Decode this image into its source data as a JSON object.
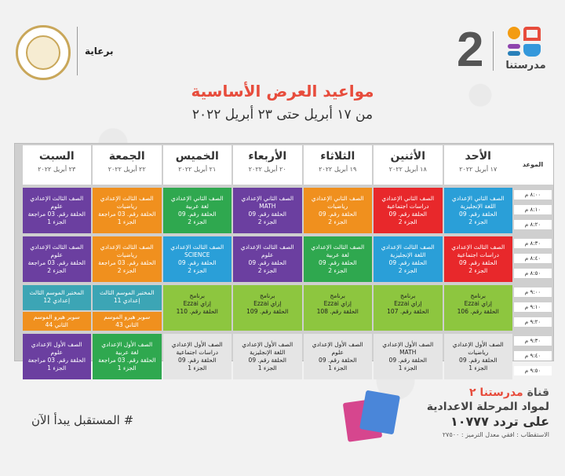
{
  "header": {
    "sponsor_label": "برعاية",
    "channel_number": "2",
    "channel_name": "مدرستنا"
  },
  "title": "مواعيد العرض الأساسية",
  "subtitle": "من ١٧ أبريل حتى ٢٣ أبريل ٢٠٢٢",
  "schedule": {
    "time_header": "الموعد",
    "times": [
      "٨:٠٠ م",
      "٨:١٠ م",
      "٨:٢٠ م",
      "٨:٣٠ م",
      "٨:٤٠ م",
      "٨:٥٠ م",
      "٩:٠٠ م",
      "٩:١٠ م",
      "٩:٢٠ م",
      "٩:٣٠ م",
      "٩:٤٠ م",
      "٩:٥٠ م"
    ],
    "days": [
      {
        "day": "الأحد",
        "date": "١٧ أبريل ٢٠٢٢"
      },
      {
        "day": "الأثنين",
        "date": "١٨ أبريل ٢٠٢٢"
      },
      {
        "day": "الثلاثاء",
        "date": "١٩ أبريل ٢٠٢٢"
      },
      {
        "day": "الأربعاء",
        "date": "٢٠ أبريل ٢٠٢٢"
      },
      {
        "day": "الخميس",
        "date": "٢١ أبريل ٢٠٢٢"
      },
      {
        "day": "الجمعة",
        "date": "٢٢ أبريل ٢٠٢٢"
      },
      {
        "day": "السبت",
        "date": "٢٣ أبريل ٢٠٢٢"
      }
    ],
    "rows": [
      [
        {
          "color": "blue",
          "lines": [
            "الصف الثاني الإعدادي",
            "اللغة الإنجليزية",
            "الحلقة رقم. 09",
            "الجزء 2"
          ]
        },
        {
          "color": "red",
          "lines": [
            "الصف الثاني الإعدادي",
            "دراسات اجتماعية",
            "الحلقة رقم. 09",
            "الجزء 2"
          ]
        },
        {
          "color": "orange",
          "lines": [
            "الصف الثاني الإعدادي",
            "رياضيات",
            "الحلقة رقم. 09",
            "الجزء 2"
          ]
        },
        {
          "color": "purple",
          "lines": [
            "الصف الثاني الإعدادي",
            "MATH",
            "الحلقة رقم. 09",
            "الجزء 2"
          ]
        },
        {
          "color": "green",
          "lines": [
            "الصف الثاني الإعدادي",
            "لغة عربية",
            "الحلقة رقم. 09",
            "الجزء 2"
          ]
        },
        {
          "color": "orange",
          "lines": [
            "الصف الثالث الإعدادي",
            "رياضيات",
            "الحلقة رقم. 03 مراجعة",
            "الجزء 1"
          ]
        },
        {
          "color": "purple",
          "lines": [
            "الصف الثالث الإعدادي",
            "علوم",
            "الحلقة رقم. 03 مراجعة",
            "الجزء 1"
          ]
        }
      ],
      [
        {
          "color": "red",
          "lines": [
            "الصف الثالث الإعدادي",
            "دراسات اجتماعية",
            "الحلقة رقم. 09",
            "الجزء 2"
          ]
        },
        {
          "color": "blue",
          "lines": [
            "الصف الثالث الإعدادي",
            "اللغة الإنجليزية",
            "الحلقة رقم. 09",
            "الجزء 2"
          ]
        },
        {
          "color": "green",
          "lines": [
            "الصف الثالث الإعدادي",
            "لغة عربية",
            "الحلقة رقم. 09",
            "الجزء 2"
          ]
        },
        {
          "color": "purple",
          "lines": [
            "الصف الثالث الإعدادي",
            "علوم",
            "الحلقة رقم. 09",
            "الجزء 2"
          ]
        },
        {
          "color": "blue",
          "lines": [
            "الصف الثالث الإعدادي",
            "SCIENCE",
            "الحلقة رقم. 09",
            "الجزء 2"
          ]
        },
        {
          "color": "orange",
          "lines": [
            "الصف الثالث الإعدادي",
            "رياضيات",
            "الحلقة رقم. 03 مراجعة",
            "الجزء 2"
          ]
        },
        {
          "color": "purple",
          "lines": [
            "الصف الثالث الإعدادي",
            "علوم",
            "الحلقة رقم. 03 مراجعة",
            "الجزء 2"
          ]
        }
      ],
      [
        {
          "color": "lime",
          "lines": [
            "برنامج",
            "إزاي Ezzai",
            "الحلقة رقم. 106"
          ]
        },
        {
          "color": "lime",
          "lines": [
            "برنامج",
            "إزاي Ezzai",
            "الحلقة رقم. 107"
          ]
        },
        {
          "color": "lime",
          "lines": [
            "برنامج",
            "إزاي Ezzai",
            "الحلقة رقم. 108"
          ]
        },
        {
          "color": "lime",
          "lines": [
            "برنامج",
            "إزاي Ezzai",
            "الحلقة رقم. 109"
          ]
        },
        {
          "color": "lime",
          "lines": [
            "برنامج",
            "إزاي Ezzai",
            "الحلقة رقم. 110"
          ]
        },
        null,
        null
      ],
      [
        {
          "color": "gray",
          "lines": [
            "الصف الأول الإعدادي",
            "رياضيات",
            "الحلقة رقم. 09",
            "الجزء 1"
          ]
        },
        {
          "color": "gray",
          "lines": [
            "الصف الأول الإعدادي",
            "MATH",
            "الحلقة رقم. 09",
            "الجزء 1"
          ]
        },
        {
          "color": "gray",
          "lines": [
            "الصف الأول الإعدادي",
            "علوم",
            "الحلقة رقم. 09",
            "الجزء 1"
          ]
        },
        {
          "color": "gray",
          "lines": [
            "الصف الأول الإعدادي",
            "اللغة الإنجليزية",
            "الحلقة رقم. 09",
            "الجزء 1"
          ]
        },
        {
          "color": "gray",
          "lines": [
            "الصف الأول الإعدادي",
            "دراسات اجتماعية",
            "الحلقة رقم. 09",
            "الجزء 1"
          ]
        },
        {
          "color": "green",
          "lines": [
            "الصف الأول الإعدادي",
            "لغة عربية",
            "الحلقة رقم. 03 مراجعة",
            "الجزء 1"
          ]
        },
        {
          "color": "purple",
          "lines": [
            "الصف الأول الإعدادي",
            "علوم",
            "الحلقة رقم. 03 مراجعة",
            "الجزء 1"
          ]
        }
      ]
    ],
    "split_cells": {
      "friday_top": {
        "color": "teal",
        "lines": [
          "المختبر الموسم الثالث",
          "إعدادي 11"
        ]
      },
      "friday_bottom": {
        "color": "orange",
        "lines": [
          "سوبر هيرو الموسم",
          "الثاني 43"
        ]
      },
      "saturday_top": {
        "color": "teal",
        "lines": [
          "المختبر الموسم الثالث",
          "إعدادي 12"
        ]
      },
      "saturday_bottom": {
        "color": "orange",
        "lines": [
          "سوبر هيرو الموسم",
          "الثاني 44"
        ]
      }
    }
  },
  "footer": {
    "hashtag": "# المستقبل يبدأ الآن",
    "channel_line_prefix": "قناة",
    "channel_line_name": "مدرستنا ٢",
    "materials_line": "لمواد المرحلة الاعدادية",
    "frequency_line": "على تردد ١٠٧٧٧",
    "reception_line": "الاستقطاب : افقي معدل الترميز : ٢٧٥٠٠"
  }
}
